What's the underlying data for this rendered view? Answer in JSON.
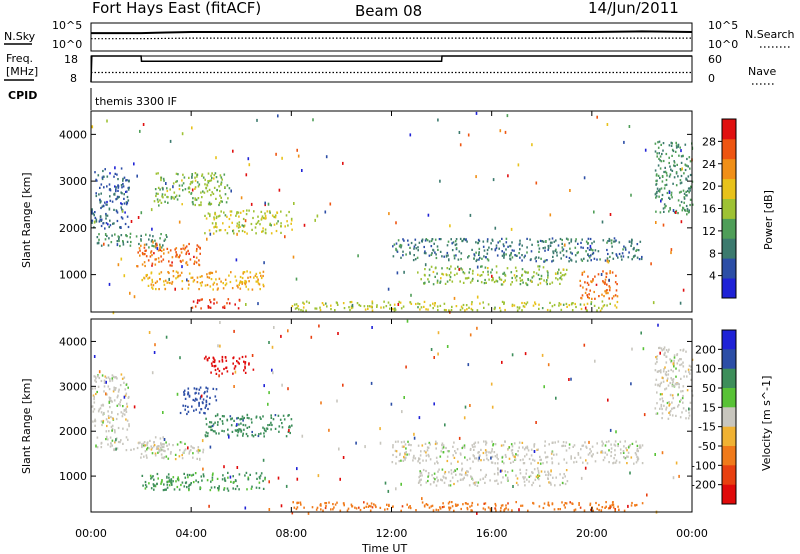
{
  "header": {
    "station": "Fort Hays East (fitACF)",
    "beam": "Beam 08",
    "date": "14/Jun/2011"
  },
  "noise_panel": {
    "left_label": "N.Sky",
    "left_ticks": [
      "10^5",
      "10^0"
    ],
    "right_label": "N.Search",
    "right_ticks": [
      "10^5",
      "10^0"
    ]
  },
  "freq_panel": {
    "left_label_line1": "Freq.",
    "left_label_line2": "[MHz]",
    "left_ticks": [
      "18",
      "8"
    ],
    "right_label": "Nave",
    "right_ticks": [
      "60",
      "0"
    ]
  },
  "cpid_panel": {
    "label": "CPID",
    "text": "themis 3300 IF"
  },
  "colors": {
    "power_scale": [
      "#1f22d6",
      "#2c4ea6",
      "#3c7a6e",
      "#4f9e58",
      "#9ec234",
      "#e8c21a",
      "#f08f17",
      "#ee5511",
      "#e01010"
    ],
    "velocity_scale": [
      "#1f22d6",
      "#2c4ea6",
      "#3d8e5a",
      "#58c236",
      "#c8c6be",
      "#f0b233",
      "#f07a1a",
      "#e84010",
      "#e00a0a"
    ]
  },
  "chart_data": [
    {
      "type": "line",
      "panel": "noise",
      "title": "",
      "series": [
        {
          "name": "N.Sky",
          "x": [
            "00:00",
            "01:00",
            "02:00",
            "03:00",
            "04:00",
            "06:00",
            "08:00",
            "10:00",
            "12:00",
            "14:00",
            "16:00",
            "18:00",
            "20:00",
            "22:00",
            "24:00"
          ],
          "values": [
            3.2,
            3.2,
            3.2,
            3.3,
            3.4,
            3.4,
            3.4,
            3.4,
            3.4,
            3.4,
            3.4,
            3.4,
            3.4,
            3.5,
            3.4
          ]
        },
        {
          "name": "N.Search",
          "x": [
            "00:00",
            "02:00",
            "04:00",
            "08:00",
            "12:00",
            "16:00",
            "20:00",
            "24:00"
          ],
          "values": [
            2.2,
            2.2,
            2.3,
            2.3,
            2.3,
            2.3,
            2.3,
            2.3
          ]
        }
      ],
      "ylim": [
        0,
        5
      ],
      "yscale": "log"
    },
    {
      "type": "line",
      "panel": "frequency",
      "series": [
        {
          "name": "Freq.",
          "x": [
            "00:00",
            "00:02",
            "02:00",
            "02:01",
            "14:00",
            "14:01",
            "24:00"
          ],
          "values": [
            8,
            18,
            18,
            16,
            16,
            18,
            18
          ]
        },
        {
          "name": "Nave",
          "x": [
            "00:00",
            "24:00"
          ],
          "values": [
            22,
            22
          ]
        }
      ],
      "ylim": [
        8,
        18
      ],
      "y2lim": [
        0,
        60
      ]
    },
    {
      "type": "heatmap",
      "panel": "power",
      "xlabel": "",
      "ylabel": "Slant Range [km]",
      "xlim": [
        "00:00",
        "24:00"
      ],
      "ylim": [
        200,
        4500
      ],
      "yticks": [
        1000,
        2000,
        3000,
        4000
      ],
      "colorbar_label": "Power [dB]",
      "colorbar_ticks": [
        4,
        8,
        12,
        16,
        20,
        24,
        28
      ],
      "clim": [
        0,
        30
      ],
      "regions": [
        {
          "t0": 0.0,
          "t1": 1.5,
          "r0": 2000,
          "r1": 3300,
          "level": 6
        },
        {
          "t0": 0.2,
          "t1": 3.0,
          "r0": 1600,
          "r1": 1900,
          "level": 10
        },
        {
          "t0": 1.8,
          "t1": 4.5,
          "r0": 1200,
          "r1": 1700,
          "level": 24
        },
        {
          "t0": 2.0,
          "t1": 7.0,
          "r0": 700,
          "r1": 1100,
          "level": 20
        },
        {
          "t0": 4.5,
          "t1": 8.0,
          "r0": 1900,
          "r1": 2400,
          "level": 16
        },
        {
          "t0": 2.5,
          "t1": 5.5,
          "r0": 2500,
          "r1": 3200,
          "level": 14
        },
        {
          "t0": 4.0,
          "t1": 6.0,
          "r0": 300,
          "r1": 500,
          "level": 26
        },
        {
          "t0": 12.0,
          "t1": 22.0,
          "r0": 1300,
          "r1": 1800,
          "level": 8
        },
        {
          "t0": 13.0,
          "t1": 19.0,
          "r0": 800,
          "r1": 1200,
          "level": 14
        },
        {
          "t0": 19.5,
          "t1": 21.0,
          "r0": 500,
          "r1": 1100,
          "level": 24
        },
        {
          "t0": 8.0,
          "t1": 21.0,
          "r0": 250,
          "r1": 450,
          "level": 16
        },
        {
          "t0": 22.5,
          "t1": 24.0,
          "r0": 2300,
          "r1": 3900,
          "level": 10
        }
      ]
    },
    {
      "type": "heatmap",
      "panel": "velocity",
      "xlabel": "Time UT",
      "ylabel": "Slant Range [km]",
      "xlim": [
        "00:00",
        "24:00"
      ],
      "xticks": [
        "00:00",
        "04:00",
        "08:00",
        "12:00",
        "16:00",
        "20:00",
        "00:00"
      ],
      "ylim": [
        200,
        4500
      ],
      "yticks": [
        1000,
        2000,
        3000,
        4000
      ],
      "colorbar_label": "Velocity [m s^-1]",
      "colorbar_ticks": [
        200,
        100,
        50,
        15,
        -15,
        -50,
        -100,
        -200
      ],
      "clim": [
        -250,
        250
      ],
      "regions": [
        {
          "t0": 0.0,
          "t1": 1.5,
          "r0": 2000,
          "r1": 3300,
          "level": 0
        },
        {
          "t0": 0.2,
          "t1": 3.0,
          "r0": 1600,
          "r1": 1900,
          "level": 0
        },
        {
          "t0": 1.8,
          "t1": 4.5,
          "r0": 1400,
          "r1": 1800,
          "level": 0
        },
        {
          "t0": 2.0,
          "t1": 7.0,
          "r0": 700,
          "r1": 1100,
          "level": 40
        },
        {
          "t0": 4.5,
          "t1": 8.0,
          "r0": 1900,
          "r1": 2400,
          "level": 60
        },
        {
          "t0": 4.5,
          "t1": 6.5,
          "r0": 3300,
          "r1": 3700,
          "level": -220
        },
        {
          "t0": 3.5,
          "t1": 5.0,
          "r0": 2400,
          "r1": 3000,
          "level": 120
        },
        {
          "t0": 12.0,
          "t1": 22.0,
          "r0": 1300,
          "r1": 1800,
          "level": 0
        },
        {
          "t0": 13.0,
          "t1": 19.0,
          "r0": 800,
          "r1": 1200,
          "level": 0
        },
        {
          "t0": 8.0,
          "t1": 22.0,
          "r0": 250,
          "r1": 450,
          "level": -60
        },
        {
          "t0": 22.5,
          "t1": 24.0,
          "r0": 2300,
          "r1": 3900,
          "level": 0
        }
      ]
    }
  ]
}
